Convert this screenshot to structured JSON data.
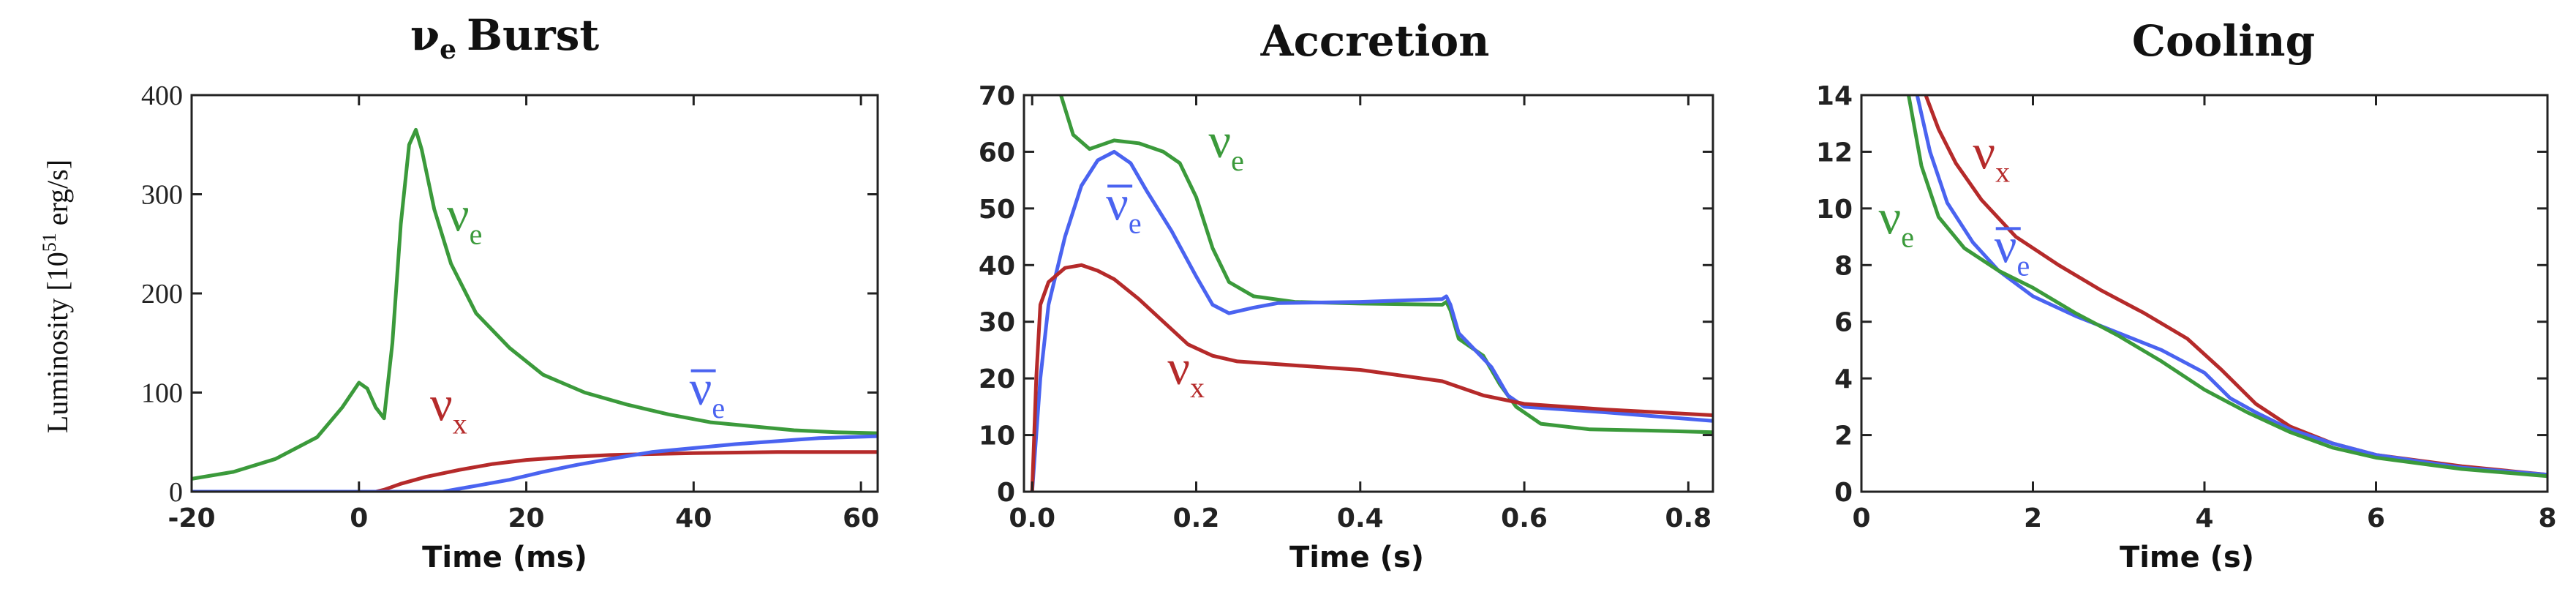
{
  "colors": {
    "green": "#3b9a3b",
    "red": "#b52a2a",
    "blue": "#4a63f0"
  },
  "chart_data": [
    {
      "type": "line",
      "title": "νe Burst",
      "title_parts": {
        "sym": "ν",
        "sub": "e",
        "rest": "Burst"
      },
      "xlabel": "Time (ms)",
      "ylabel": "Luminosity [10^51 erg/s]",
      "ylabel_parts": {
        "pre": "Luminosity [10",
        "sup": "51",
        "post": " erg/s]"
      },
      "xlim": [
        -20,
        62
      ],
      "ylim": [
        0,
        400
      ],
      "xticks": [
        -20,
        0,
        20,
        40,
        60
      ],
      "yticks": [
        0,
        100,
        200,
        300,
        400
      ],
      "xtick_labels": [
        "-20",
        "0",
        "20",
        "40",
        "60"
      ],
      "ytick_labels": [
        "0",
        "100",
        "200",
        "300",
        "400"
      ],
      "series": [
        {
          "name": "νe",
          "color": "green",
          "points": [
            [
              -20,
              13
            ],
            [
              -15,
              20
            ],
            [
              -10,
              33
            ],
            [
              -5,
              55
            ],
            [
              -2,
              85
            ],
            [
              0,
              110
            ],
            [
              1,
              104
            ],
            [
              2,
              85
            ],
            [
              3,
              74
            ],
            [
              4,
              150
            ],
            [
              5,
              270
            ],
            [
              6,
              350
            ],
            [
              6.8,
              365
            ],
            [
              7.5,
              345
            ],
            [
              9,
              285
            ],
            [
              11,
              230
            ],
            [
              14,
              180
            ],
            [
              18,
              145
            ],
            [
              22,
              118
            ],
            [
              27,
              100
            ],
            [
              32,
              88
            ],
            [
              37,
              78
            ],
            [
              42,
              70
            ],
            [
              47,
              66
            ],
            [
              52,
              62
            ],
            [
              57,
              60
            ],
            [
              62,
              59
            ]
          ]
        },
        {
          "name": "νx",
          "color": "red",
          "points": [
            [
              -20,
              0
            ],
            [
              2,
              0
            ],
            [
              3,
              2
            ],
            [
              5,
              8
            ],
            [
              8,
              15
            ],
            [
              12,
              22
            ],
            [
              16,
              28
            ],
            [
              20,
              32
            ],
            [
              25,
              35
            ],
            [
              30,
              37
            ],
            [
              35,
              38
            ],
            [
              40,
              39
            ],
            [
              50,
              40
            ],
            [
              62,
              40
            ]
          ]
        },
        {
          "name": "ν̄e",
          "color": "blue",
          "points": [
            [
              -20,
              0
            ],
            [
              10,
              0
            ],
            [
              14,
              6
            ],
            [
              18,
              12
            ],
            [
              22,
              20
            ],
            [
              26,
              27
            ],
            [
              30,
              33
            ],
            [
              35,
              40
            ],
            [
              40,
              44
            ],
            [
              45,
              48
            ],
            [
              50,
              51
            ],
            [
              55,
              54
            ],
            [
              62,
              56
            ]
          ]
        }
      ],
      "annotations": [
        {
          "sym": "ν",
          "sub": "e",
          "bar": false,
          "color": "green",
          "x": 10.5,
          "y": 263
        },
        {
          "sym": "ν",
          "sub": "x",
          "bar": false,
          "color": "red",
          "x": 8.5,
          "y": 72
        },
        {
          "sym": "ν",
          "sub": "e",
          "bar": true,
          "color": "blue",
          "x": 39.5,
          "y": 88
        }
      ]
    },
    {
      "type": "line",
      "title": "Accretion",
      "xlabel": "Time (s)",
      "ylabel": "",
      "xlim": [
        -0.01,
        0.83
      ],
      "ylim": [
        0,
        70
      ],
      "xticks": [
        0,
        0.2,
        0.4,
        0.6,
        0.8
      ],
      "yticks": [
        0,
        10,
        20,
        30,
        40,
        50,
        60,
        70
      ],
      "xtick_labels": [
        "0.0",
        "0.2",
        "0.4",
        "0.6",
        "0.8"
      ],
      "ytick_labels": [
        "0",
        "10",
        "20",
        "30",
        "40",
        "50",
        "60",
        "70"
      ],
      "series": [
        {
          "name": "νe",
          "color": "green",
          "points": [
            [
              0.035,
              70
            ],
            [
              0.05,
              63
            ],
            [
              0.07,
              60.5
            ],
            [
              0.09,
              61.5
            ],
            [
              0.1,
              62
            ],
            [
              0.13,
              61.5
            ],
            [
              0.16,
              60
            ],
            [
              0.18,
              58
            ],
            [
              0.2,
              52
            ],
            [
              0.22,
              43
            ],
            [
              0.24,
              37
            ],
            [
              0.27,
              34.5
            ],
            [
              0.32,
              33.5
            ],
            [
              0.4,
              33.2
            ],
            [
              0.5,
              33
            ],
            [
              0.505,
              33.5
            ],
            [
              0.51,
              32
            ],
            [
              0.52,
              27
            ],
            [
              0.55,
              24
            ],
            [
              0.57,
              19
            ],
            [
              0.59,
              15
            ],
            [
              0.62,
              12
            ],
            [
              0.68,
              11
            ],
            [
              0.75,
              10.8
            ],
            [
              0.83,
              10.5
            ]
          ]
        },
        {
          "name": "ν̄e",
          "color": "blue",
          "points": [
            [
              0,
              0
            ],
            [
              0.01,
              20
            ],
            [
              0.02,
              33
            ],
            [
              0.04,
              45
            ],
            [
              0.06,
              54
            ],
            [
              0.08,
              58.5
            ],
            [
              0.1,
              60
            ],
            [
              0.12,
              58
            ],
            [
              0.14,
              53
            ],
            [
              0.17,
              46
            ],
            [
              0.2,
              38
            ],
            [
              0.22,
              33
            ],
            [
              0.24,
              31.5
            ],
            [
              0.27,
              32.5
            ],
            [
              0.3,
              33.3
            ],
            [
              0.4,
              33.5
            ],
            [
              0.5,
              34
            ],
            [
              0.505,
              34.5
            ],
            [
              0.51,
              33
            ],
            [
              0.52,
              28
            ],
            [
              0.56,
              22
            ],
            [
              0.58,
              17
            ],
            [
              0.6,
              15
            ],
            [
              0.7,
              14
            ],
            [
              0.83,
              12.5
            ]
          ]
        },
        {
          "name": "νx",
          "color": "red",
          "points": [
            [
              0,
              0
            ],
            [
              0.005,
              20
            ],
            [
              0.01,
              33
            ],
            [
              0.02,
              37
            ],
            [
              0.04,
              39.5
            ],
            [
              0.06,
              40
            ],
            [
              0.08,
              39
            ],
            [
              0.1,
              37.5
            ],
            [
              0.13,
              34
            ],
            [
              0.16,
              30
            ],
            [
              0.19,
              26
            ],
            [
              0.22,
              24
            ],
            [
              0.25,
              23
            ],
            [
              0.3,
              22.5
            ],
            [
              0.4,
              21.5
            ],
            [
              0.5,
              19.5
            ],
            [
              0.51,
              19
            ],
            [
              0.55,
              17
            ],
            [
              0.6,
              15.5
            ],
            [
              0.7,
              14.5
            ],
            [
              0.83,
              13.5
            ]
          ]
        }
      ],
      "annotations": [
        {
          "sym": "ν",
          "sub": "e",
          "bar": false,
          "color": "green",
          "x": 0.215,
          "y": 59
        },
        {
          "sym": "ν",
          "sub": "e",
          "bar": true,
          "color": "blue",
          "x": 0.09,
          "y": 48
        },
        {
          "sym": "ν",
          "sub": "x",
          "bar": false,
          "color": "red",
          "x": 0.165,
          "y": 19
        }
      ]
    },
    {
      "type": "line",
      "title": "Cooling",
      "xlabel": "Time (s)",
      "ylabel": "",
      "xlim": [
        0,
        8
      ],
      "ylim": [
        0,
        14
      ],
      "xticks": [
        0,
        2,
        4,
        6,
        8
      ],
      "yticks": [
        0,
        2,
        4,
        6,
        8,
        10,
        12,
        14
      ],
      "xtick_labels": [
        "0",
        "2",
        "4",
        "6",
        "8"
      ],
      "ytick_labels": [
        "0",
        "2",
        "4",
        "6",
        "8",
        "10",
        "12",
        "14"
      ],
      "series": [
        {
          "name": "νx",
          "color": "red",
          "points": [
            [
              0.75,
              14
            ],
            [
              0.9,
              12.8
            ],
            [
              1.1,
              11.6
            ],
            [
              1.4,
              10.3
            ],
            [
              1.8,
              9
            ],
            [
              2.3,
              8
            ],
            [
              2.8,
              7.1
            ],
            [
              3.3,
              6.3
            ],
            [
              3.8,
              5.4
            ],
            [
              4.2,
              4.3
            ],
            [
              4.6,
              3.1
            ],
            [
              5.0,
              2.3
            ],
            [
              5.5,
              1.7
            ],
            [
              6,
              1.3
            ],
            [
              7,
              0.9
            ],
            [
              8,
              0.6
            ]
          ]
        },
        {
          "name": "ν̄e",
          "color": "blue",
          "points": [
            [
              0.65,
              14
            ],
            [
              0.8,
              12
            ],
            [
              1.0,
              10.2
            ],
            [
              1.3,
              8.8
            ],
            [
              1.6,
              7.8
            ],
            [
              2.0,
              6.9
            ],
            [
              2.5,
              6.2
            ],
            [
              3.0,
              5.6
            ],
            [
              3.5,
              5
            ],
            [
              4.0,
              4.2
            ],
            [
              4.3,
              3.3
            ],
            [
              4.6,
              2.8
            ],
            [
              5,
              2.2
            ],
            [
              5.5,
              1.7
            ],
            [
              6,
              1.3
            ],
            [
              7,
              0.85
            ],
            [
              8,
              0.6
            ]
          ]
        },
        {
          "name": "νe",
          "color": "green",
          "points": [
            [
              0.55,
              14
            ],
            [
              0.7,
              11.5
            ],
            [
              0.9,
              9.7
            ],
            [
              1.2,
              8.6
            ],
            [
              1.6,
              7.8
            ],
            [
              2.0,
              7.2
            ],
            [
              2.5,
              6.3
            ],
            [
              3.0,
              5.5
            ],
            [
              3.5,
              4.6
            ],
            [
              4.0,
              3.6
            ],
            [
              4.5,
              2.8
            ],
            [
              5,
              2.1
            ],
            [
              5.5,
              1.55
            ],
            [
              6,
              1.2
            ],
            [
              7,
              0.8
            ],
            [
              8,
              0.55
            ]
          ]
        }
      ],
      "annotations": [
        {
          "sym": "ν",
          "sub": "x",
          "bar": false,
          "color": "red",
          "x": 1.3,
          "y": 11.4
        },
        {
          "sym": "ν",
          "sub": "e",
          "bar": false,
          "color": "green",
          "x": 0.2,
          "y": 9.1
        },
        {
          "sym": "ν",
          "sub": "e",
          "bar": true,
          "color": "blue",
          "x": 1.55,
          "y": 8.1
        }
      ]
    }
  ]
}
